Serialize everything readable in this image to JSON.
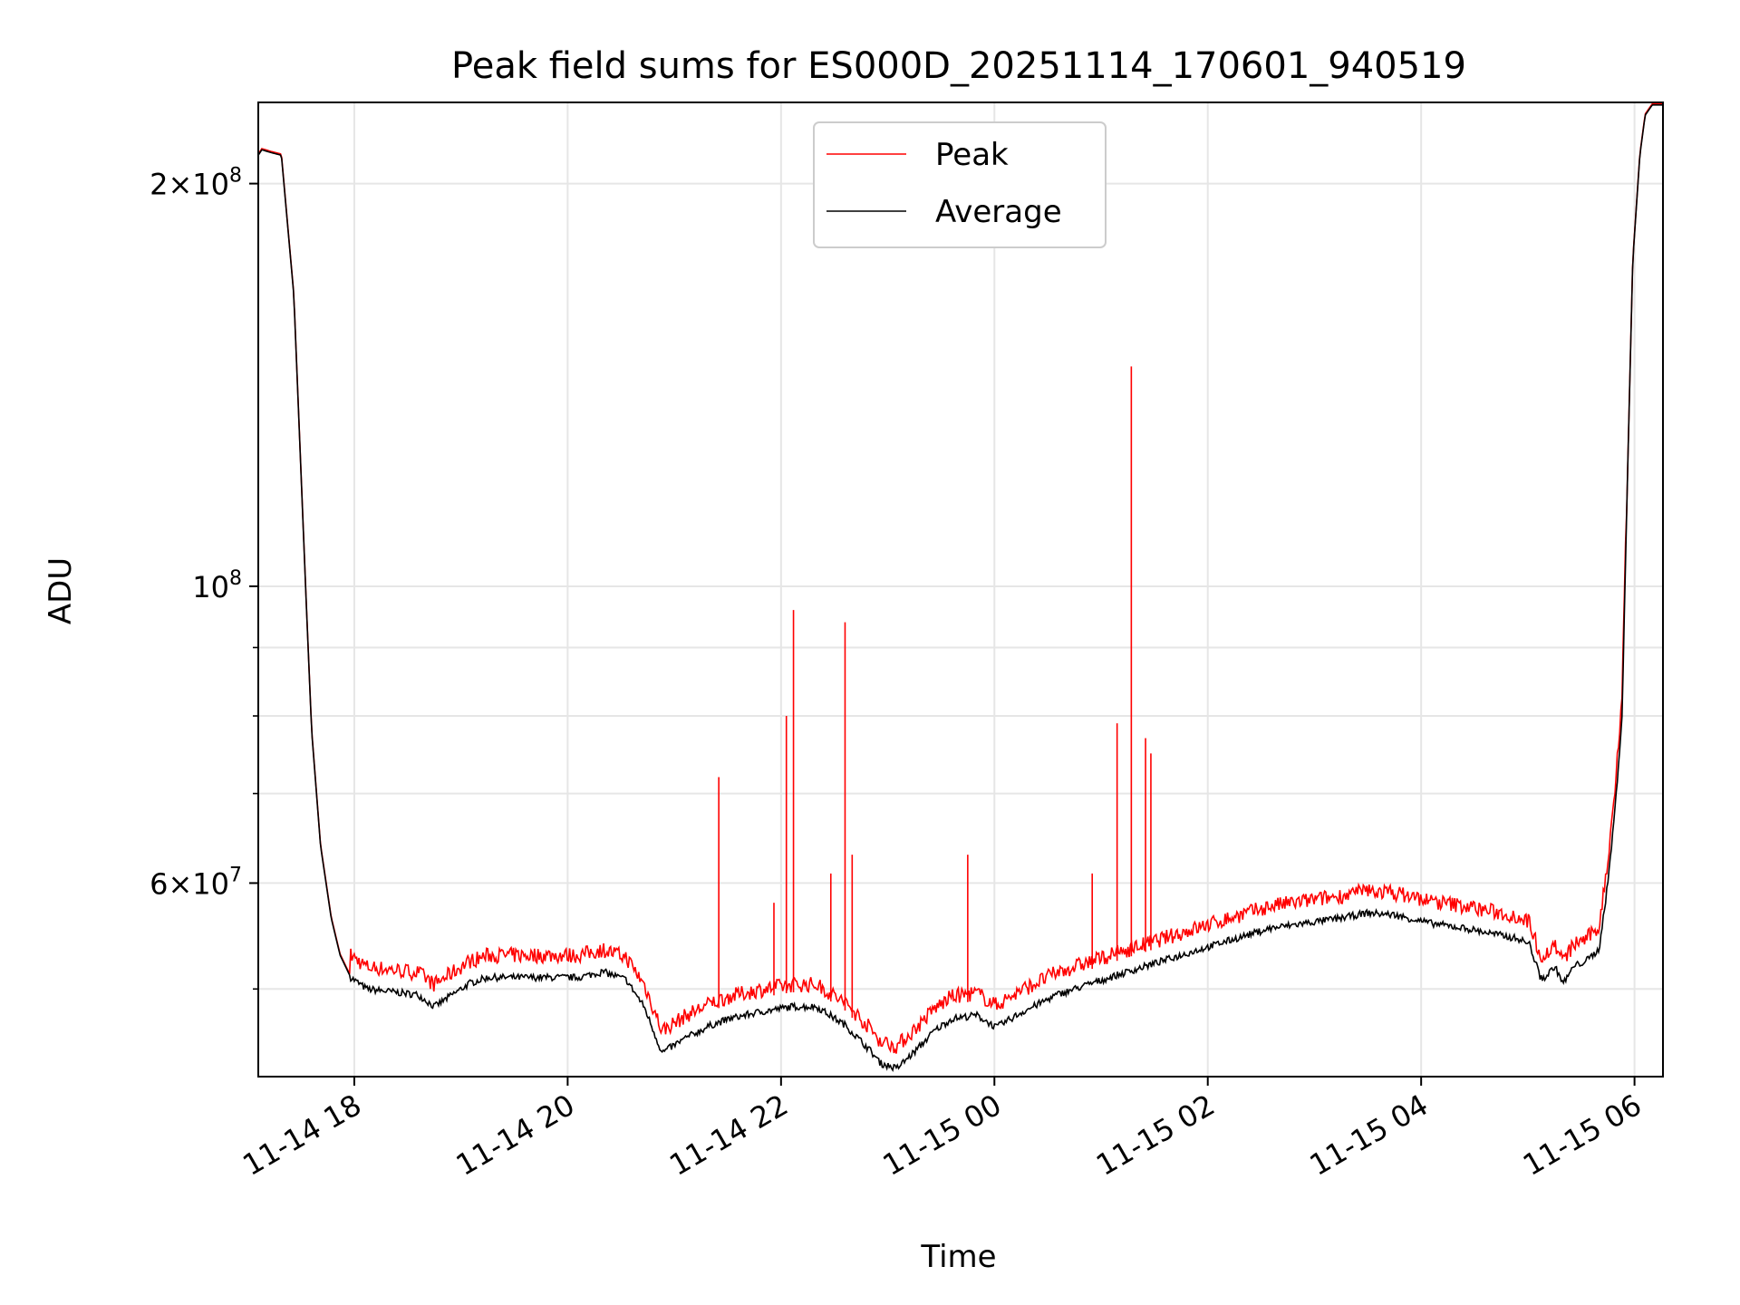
{
  "chart_data": {
    "type": "line",
    "title": "Peak field sums for ES000D_20251114_170601_940519",
    "xlabel": "Time",
    "ylabel": "ADU",
    "yscale": "log",
    "grid": true,
    "legend_placement": "top-center",
    "xlim": [
      "2025-11-14 17:06",
      "2025-11-15 06:16"
    ],
    "ylim": [
      43000000,
      230000000
    ],
    "x_ticks": [
      {
        "t": "2025-11-14 18:00",
        "label": "11-14 18"
      },
      {
        "t": "2025-11-14 20:00",
        "label": "11-14 20"
      },
      {
        "t": "2025-11-14 22:00",
        "label": "11-14 22"
      },
      {
        "t": "2025-11-15 00:00",
        "label": "11-15 00"
      },
      {
        "t": "2025-11-15 02:00",
        "label": "11-15 02"
      },
      {
        "t": "2025-11-15 04:00",
        "label": "11-15 04"
      },
      {
        "t": "2025-11-15 06:00",
        "label": "11-15 06"
      }
    ],
    "y_ticks_major": [
      {
        "v": 60000000,
        "mant": "6",
        "exp": "7"
      },
      {
        "v": 100000000,
        "mant": "",
        "exp": "8"
      },
      {
        "v": 200000000,
        "mant": "2",
        "exp": "8"
      }
    ],
    "y_ticks_minor": [
      50000000,
      70000000,
      80000000,
      90000000
    ],
    "series": [
      {
        "name": "Average",
        "color": "#000000",
        "x": [
          "2025-11-14 17:06",
          "2025-11-14 17:08",
          "2025-11-14 17:13",
          "2025-11-14 17:19",
          "2025-11-14 17:26",
          "2025-11-14 17:33",
          "2025-11-14 17:36",
          "2025-11-14 17:41",
          "2025-11-14 17:47",
          "2025-11-14 17:52",
          "2025-11-14 17:58",
          "2025-11-14 18:07",
          "2025-11-14 18:36",
          "2025-11-14 18:45",
          "2025-11-14 18:55",
          "2025-11-14 19:05",
          "2025-11-14 19:15",
          "2025-11-14 19:35",
          "2025-11-14 20:06",
          "2025-11-14 20:20",
          "2025-11-14 20:33",
          "2025-11-14 20:43",
          "2025-11-14 20:47",
          "2025-11-14 20:53",
          "2025-11-14 21:07",
          "2025-11-14 21:21",
          "2025-11-14 21:31",
          "2025-11-14 21:46",
          "2025-11-14 22:06",
          "2025-11-14 22:20",
          "2025-11-14 22:36",
          "2025-11-14 22:50",
          "2025-11-14 22:56",
          "2025-11-14 23:05",
          "2025-11-14 23:16",
          "2025-11-14 23:26",
          "2025-11-14 23:36",
          "2025-11-14 23:50",
          "2025-11-15 00:01",
          "2025-11-15 00:15",
          "2025-11-15 00:35",
          "2025-11-15 00:55",
          "2025-11-15 01:15",
          "2025-11-15 01:35",
          "2025-11-15 01:55",
          "2025-11-15 02:15",
          "2025-11-15 02:35",
          "2025-11-15 02:55",
          "2025-11-15 03:15",
          "2025-11-15 03:30",
          "2025-11-15 03:45",
          "2025-11-15 04:05",
          "2025-11-15 04:25",
          "2025-11-15 04:40",
          "2025-11-15 04:55",
          "2025-11-15 05:01",
          "2025-11-15 05:07",
          "2025-11-15 05:10",
          "2025-11-15 05:15",
          "2025-11-15 05:20",
          "2025-11-15 05:26",
          "2025-11-15 05:33",
          "2025-11-15 05:40",
          "2025-11-15 05:45",
          "2025-11-15 05:49",
          "2025-11-15 05:53",
          "2025-11-15 05:56",
          "2025-11-15 05:59",
          "2025-11-15 06:03",
          "2025-11-15 06:06",
          "2025-11-15 06:10",
          "2025-11-15 06:16"
        ],
        "y": [
          210000000,
          212000000,
          211000000,
          210000000,
          165000000,
          97000000,
          78000000,
          64000000,
          56500000,
          53000000,
          51000000,
          50000000,
          49500000,
          48500000,
          49500000,
          50500000,
          51000000,
          51000000,
          51000000,
          51500000,
          50800000,
          48500000,
          47000000,
          44800000,
          46000000,
          47000000,
          47500000,
          48000000,
          48500000,
          48500000,
          47000000,
          45000000,
          44000000,
          43600000,
          45000000,
          46500000,
          47500000,
          47800000,
          46800000,
          48000000,
          49500000,
          50500000,
          51500000,
          52500000,
          53500000,
          54500000,
          55500000,
          56000000,
          56500000,
          57000000,
          56800000,
          56000000,
          55500000,
          55000000,
          54500000,
          54000000,
          51000000,
          51000000,
          52000000,
          50500000,
          52000000,
          52500000,
          53500000,
          60000000,
          68000000,
          80000000,
          120000000,
          175000000,
          210000000,
          225000000,
          229000000,
          229000000
        ]
      },
      {
        "name": "Peak",
        "color": "#ff0000",
        "offset_ratio": 1.025,
        "spikes": [
          {
            "t": "2025-11-14 21:25",
            "y": 72000000
          },
          {
            "t": "2025-11-14 21:56",
            "y": 58000000
          },
          {
            "t": "2025-11-14 22:03",
            "y": 80000000
          },
          {
            "t": "2025-11-14 22:07",
            "y": 96000000
          },
          {
            "t": "2025-11-14 22:28",
            "y": 61000000
          },
          {
            "t": "2025-11-14 22:36",
            "y": 94000000
          },
          {
            "t": "2025-11-14 22:40",
            "y": 63000000
          },
          {
            "t": "2025-11-14 23:45",
            "y": 63000000
          },
          {
            "t": "2025-11-15 00:55",
            "y": 61000000
          },
          {
            "t": "2025-11-15 01:09",
            "y": 79000000
          },
          {
            "t": "2025-11-15 01:17",
            "y": 146000000
          },
          {
            "t": "2025-11-15 01:25",
            "y": 77000000
          },
          {
            "t": "2025-11-15 01:28",
            "y": 75000000
          }
        ]
      }
    ]
  }
}
